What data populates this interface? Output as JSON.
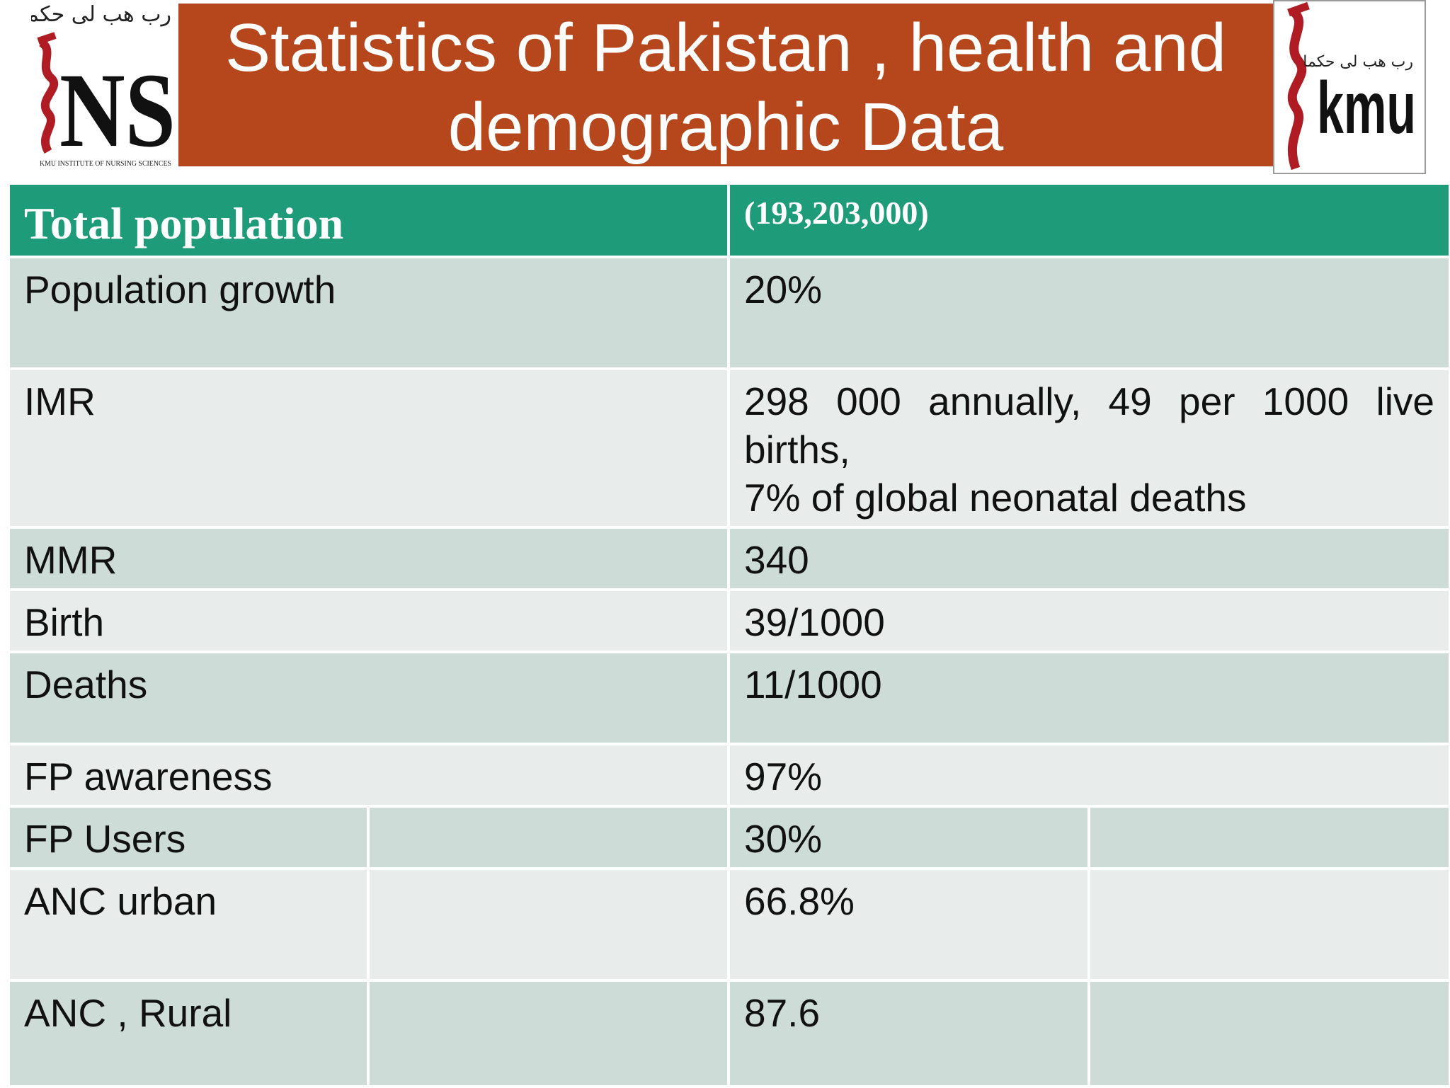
{
  "header": {
    "title": "Statistics of Pakistan , health and demographic Data",
    "title_line1": "Statistics of Pakistan , health and",
    "title_line2": "demographic Data"
  },
  "logos": {
    "left": {
      "letters": "NS",
      "caption": "KMU INSTITUTE OF NURSING SCIENCES",
      "motto": "رب هب لی حکما"
    },
    "right": {
      "letters": "kmu",
      "motto": "رب هب لی حکما"
    }
  },
  "table": {
    "header": {
      "label": "Total population",
      "value": "(193,203,000)"
    },
    "rows": [
      {
        "label": "Population growth",
        "value": "20%"
      },
      {
        "label": "IMR",
        "value_line1": "298 000 annually, 49 per 1000 live",
        "value_line2": "births,",
        "value_line3": "7% of global neonatal deaths"
      },
      {
        "label": "MMR",
        "value": "340"
      },
      {
        "label": "Birth",
        "value": "39/1000"
      },
      {
        "label": "Deaths",
        "value": "11/1000"
      },
      {
        "label": "FP awareness",
        "value": "97%"
      },
      {
        "label": "FP Users",
        "value": "30%"
      },
      {
        "label": "ANC urban",
        "value": "66.8%"
      },
      {
        "label": "ANC , Rural",
        "value": "87.6"
      }
    ]
  },
  "colors": {
    "banner": "#b6471d",
    "table_header": "#1e9b78",
    "row_dark": "#cddcd6",
    "row_light": "#e8edeb",
    "logo_red": "#b01c24"
  }
}
